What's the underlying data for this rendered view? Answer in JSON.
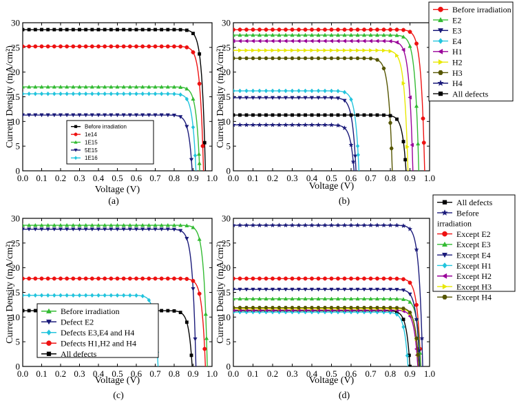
{
  "chart_data": [
    {
      "type": "line",
      "panel_label": "(a)",
      "xlabel": "Voltage (V)",
      "ylabel": "Current Density (mA/cm²)",
      "xlim": [
        0.0,
        1.0
      ],
      "ylim": [
        0,
        30
      ],
      "xticks": [
        "0.0",
        "0.1",
        "0.2",
        "0.3",
        "0.4",
        "0.5",
        "0.6",
        "0.7",
        "0.8",
        "0.9",
        "1.0"
      ],
      "yticks": [
        "0",
        "5",
        "10",
        "15",
        "20",
        "25",
        "30"
      ],
      "legend_position": "lower-center",
      "series": [
        {
          "name": "Before irradiation",
          "color": "#000000",
          "marker": "square",
          "jsc": 28.6,
          "voc": 0.965
        },
        {
          "name": "1e14",
          "color": "#ee1111",
          "marker": "circle",
          "jsc": 25.2,
          "voc": 0.955
        },
        {
          "name": "1E15",
          "color": "#33bb33",
          "marker": "triangle-up",
          "jsc": 17.0,
          "voc": 0.935
        },
        {
          "name": "5E15",
          "color": "#1a1a7a",
          "marker": "triangle-down",
          "jsc": 11.3,
          "voc": 0.895
        },
        {
          "name": "1E16",
          "color": "#22c4dd",
          "marker": "diamond",
          "jsc": 15.6,
          "voc": 0.915
        }
      ]
    },
    {
      "type": "line",
      "panel_label": "(b)",
      "xlabel": "Voltage (V)",
      "ylabel": "Current Density (mA/cm²)",
      "xlim": [
        0.0,
        1.0
      ],
      "ylim": [
        0,
        30
      ],
      "xticks": [
        "0.0",
        "0.1",
        "0.2",
        "0.3",
        "0.4",
        "0.5",
        "0.6",
        "0.7",
        "0.8",
        "0.9",
        "1.0"
      ],
      "yticks": [
        "0",
        "5",
        "10",
        "15",
        "20",
        "25",
        "30"
      ],
      "legend_position": "outside-right",
      "series": [
        {
          "name": "Before irradiation",
          "color": "#ee1111",
          "marker": "circle",
          "jsc": 28.6,
          "voc": 0.975
        },
        {
          "name": "E2",
          "color": "#33bb33",
          "marker": "triangle-up",
          "jsc": 27.5,
          "voc": 0.945
        },
        {
          "name": "E3",
          "color": "#1a1a7a",
          "marker": "triangle-down",
          "jsc": 14.8,
          "voc": 0.625
        },
        {
          "name": "E4",
          "color": "#22c4dd",
          "marker": "diamond",
          "jsc": 16.2,
          "voc": 0.64
        },
        {
          "name": "H1",
          "color": "#990099",
          "marker": "triangle-left",
          "jsc": 26.3,
          "voc": 0.915
        },
        {
          "name": "H2",
          "color": "#e8e800",
          "marker": "triangle-right",
          "jsc": 24.4,
          "voc": 0.89
        },
        {
          "name": "H3",
          "color": "#555500",
          "marker": "hexagon",
          "jsc": 22.8,
          "voc": 0.81
        },
        {
          "name": "H4",
          "color": "#1a1a7a",
          "marker": "star",
          "jsc": 9.3,
          "voc": 0.615
        },
        {
          "name": "All defects",
          "color": "#000000",
          "marker": "square",
          "jsc": 11.3,
          "voc": 0.88
        }
      ]
    },
    {
      "type": "line",
      "panel_label": "(c)",
      "xlabel": "Voltage (V)",
      "ylabel": "Current Density (mA/cm²)",
      "xlim": [
        0.0,
        1.0
      ],
      "ylim": [
        0,
        30
      ],
      "xticks": [
        "0.0",
        "0.1",
        "0.2",
        "0.3",
        "0.4",
        "0.5",
        "0.6",
        "0.7",
        "0.8",
        "0.9",
        "1.0"
      ],
      "yticks": [
        "0",
        "5",
        "10",
        "15",
        "20",
        "25",
        "30"
      ],
      "legend_position": "lower-left",
      "series": [
        {
          "name": "Before irradiation",
          "color": "#33bb33",
          "marker": "triangle-up",
          "jsc": 28.6,
          "voc": 0.975
        },
        {
          "name": "Defect E2",
          "color": "#1a1a7a",
          "marker": "triangle-down",
          "jsc": 27.8,
          "voc": 0.915
        },
        {
          "name": "Defects E3,E4 and H4",
          "color": "#22c4dd",
          "marker": "diamond",
          "jsc": 14.4,
          "voc": 0.715
        },
        {
          "name": "Defects H1,H2 and H4",
          "color": "#ee1111",
          "marker": "circle",
          "jsc": 17.8,
          "voc": 0.965
        },
        {
          "name": "All defects",
          "color": "#000000",
          "marker": "square",
          "jsc": 11.3,
          "voc": 0.895
        }
      ]
    },
    {
      "type": "line",
      "panel_label": "(d)",
      "xlabel": "Voltage (V)",
      "ylabel": "Current Density (mA/cm²)",
      "xlim": [
        0.0,
        1.0
      ],
      "ylim": [
        0,
        30
      ],
      "xticks": [
        "0.0",
        "0.1",
        "0.2",
        "0.3",
        "0.4",
        "0.5",
        "0.6",
        "0.7",
        "0.8",
        "0.9",
        "1.0"
      ],
      "yticks": [
        "0",
        "5",
        "10",
        "15",
        "20",
        "25",
        "30"
      ],
      "legend_position": "outside-right",
      "series": [
        {
          "name": "All defects",
          "color": "#000000",
          "marker": "square",
          "jsc": 11.3,
          "voc": 0.9
        },
        {
          "name": "Before irradiation",
          "color": "#1a1a7a",
          "marker": "star",
          "jsc": 28.6,
          "voc": 0.965
        },
        {
          "name": "Except E2",
          "color": "#ee1111",
          "marker": "circle",
          "jsc": 17.8,
          "voc": 0.955
        },
        {
          "name": "Except E3",
          "color": "#33bb33",
          "marker": "triangle-up",
          "jsc": 13.7,
          "voc": 0.955
        },
        {
          "name": "Except E4",
          "color": "#1a1a7a",
          "marker": "triangle-down",
          "jsc": 15.6,
          "voc": 0.95
        },
        {
          "name": "Except H1",
          "color": "#22c4dd",
          "marker": "diamond",
          "jsc": 11.0,
          "voc": 0.89
        },
        {
          "name": "Except H2",
          "color": "#990099",
          "marker": "triangle-left",
          "jsc": 11.4,
          "voc": 0.94
        },
        {
          "name": "Except H3",
          "color": "#e8e800",
          "marker": "triangle-right",
          "jsc": 11.7,
          "voc": 0.945
        },
        {
          "name": "Except H4",
          "color": "#555500",
          "marker": "hexagon",
          "jsc": 11.9,
          "voc": 0.945
        }
      ]
    }
  ]
}
